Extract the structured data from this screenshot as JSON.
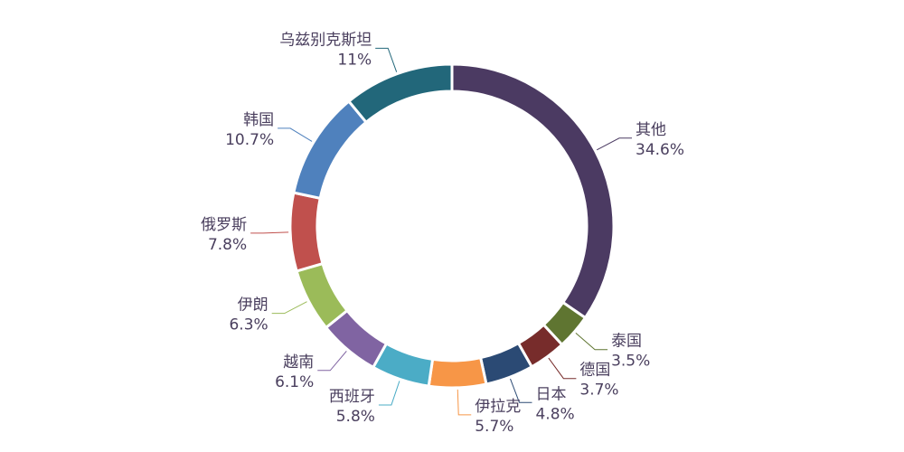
{
  "chart_data": {
    "type": "pie",
    "donut": true,
    "title": "",
    "slices": [
      {
        "label": "其他",
        "value": 34.6,
        "display": "34.6%",
        "color": "#4b3a62"
      },
      {
        "label": "泰国",
        "value": 3.5,
        "display": "3.5%",
        "color": "#5f7531"
      },
      {
        "label": "德国",
        "value": 3.7,
        "display": "3.7%",
        "color": "#772c2b"
      },
      {
        "label": "日本",
        "value": 4.8,
        "display": "4.8%",
        "color": "#2b4a74"
      },
      {
        "label": "伊拉克",
        "value": 5.7,
        "display": "5.7%",
        "color": "#f79647"
      },
      {
        "label": "西班牙",
        "value": 5.8,
        "display": "5.8%",
        "color": "#4bacc6"
      },
      {
        "label": "越南",
        "value": 6.1,
        "display": "6.1%",
        "color": "#8064a2"
      },
      {
        "label": "伊朗",
        "value": 6.3,
        "display": "6.3%",
        "color": "#9bbb59"
      },
      {
        "label": "俄罗斯",
        "value": 7.8,
        "display": "7.8%",
        "color": "#c0504d"
      },
      {
        "label": "韩国",
        "value": 10.7,
        "display": "10.7%",
        "color": "#4f81bd"
      },
      {
        "label": "乌兹别克斯坦",
        "value": 11,
        "display": "11%",
        "color": "#22677a"
      }
    ]
  }
}
